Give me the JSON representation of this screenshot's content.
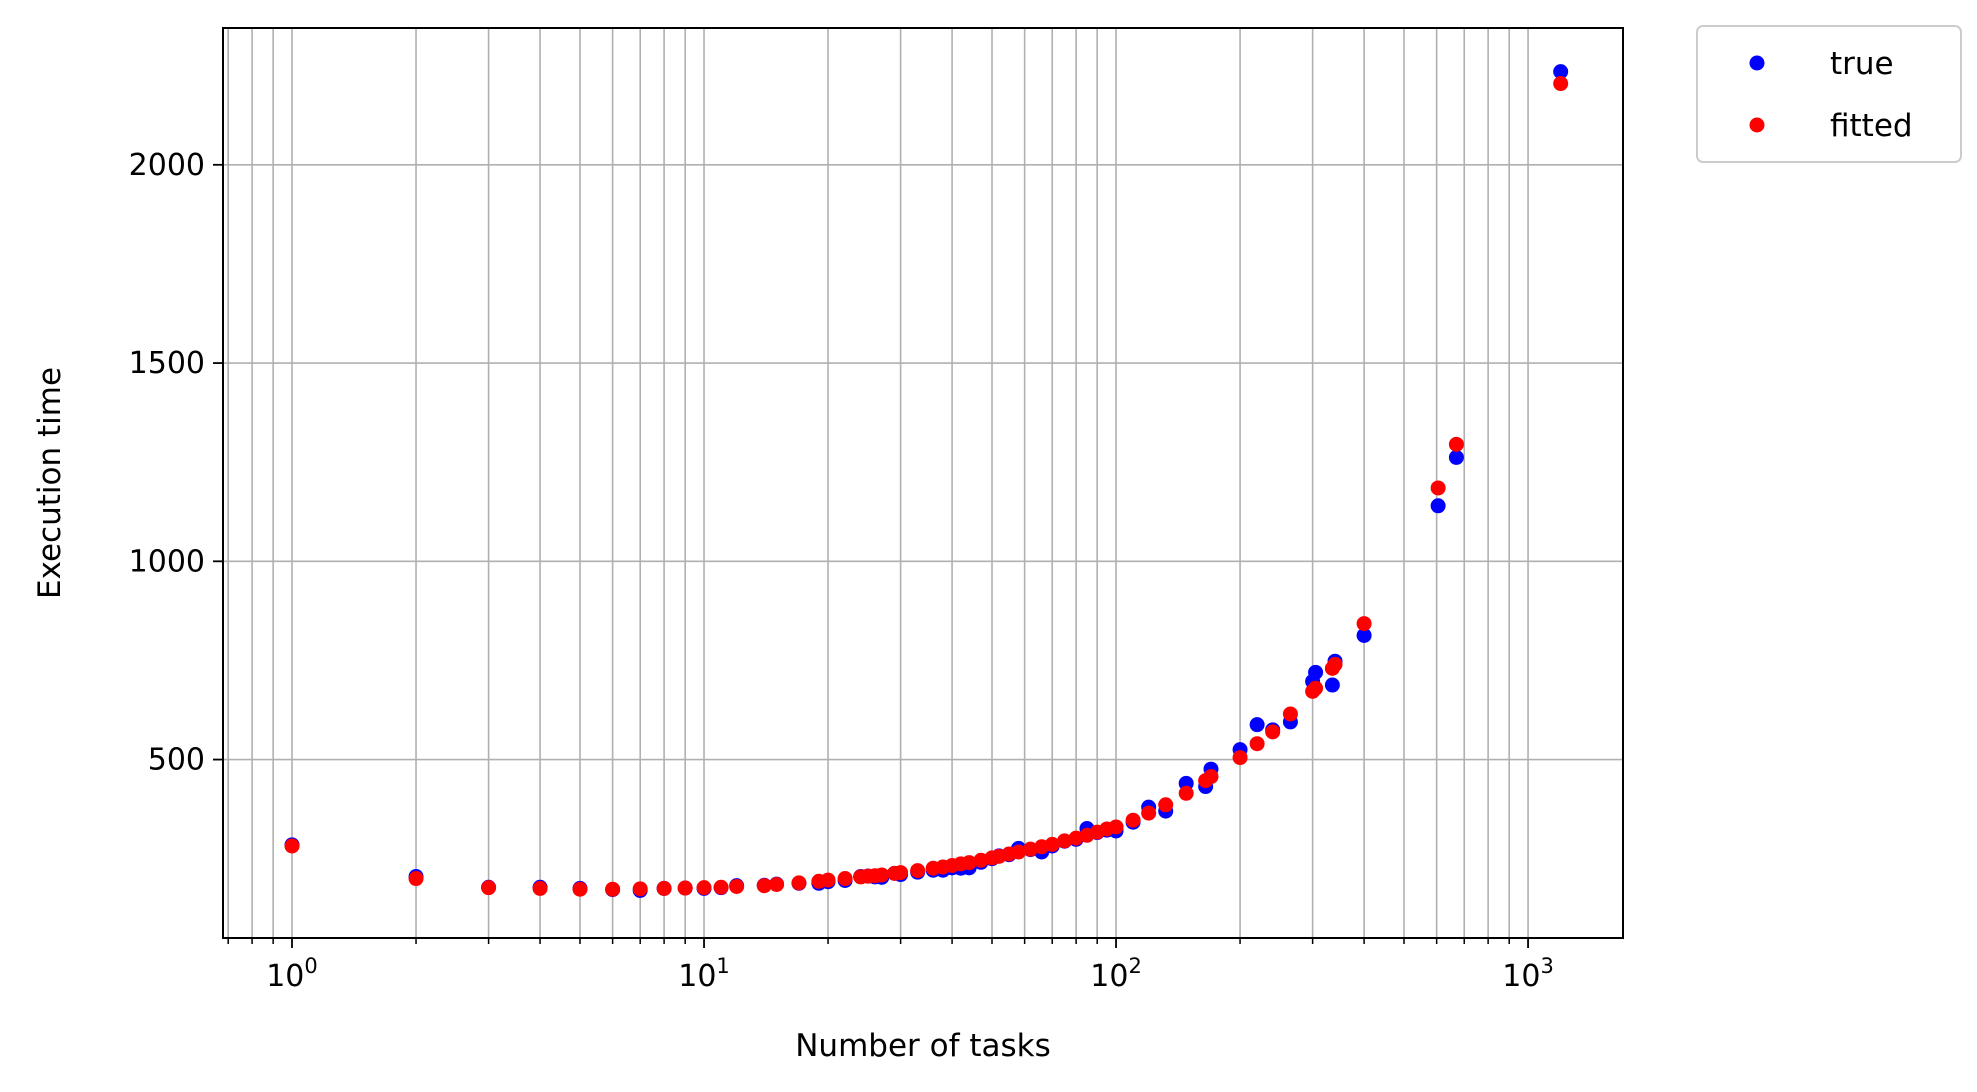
{
  "chart_data": {
    "type": "scatter",
    "title": "",
    "xlabel": "Number of tasks",
    "ylabel": "Execution time",
    "xscale": "log",
    "xlim": [
      0.68,
      1700
    ],
    "ylim": [
      50,
      2345
    ],
    "grid": true,
    "legend_placement": "outside upper right",
    "x_tick_labels": [
      {
        "value": 1,
        "base": "10",
        "exp": "0"
      },
      {
        "value": 10,
        "base": "10",
        "exp": "1"
      },
      {
        "value": 100,
        "base": "10",
        "exp": "2"
      },
      {
        "value": 1000,
        "base": "10",
        "exp": "3"
      }
    ],
    "y_ticks": [
      500,
      1000,
      1500,
      2000
    ],
    "y_tick_labels": [
      "500",
      "1000",
      "1500",
      "2000"
    ],
    "series": [
      {
        "name": "true",
        "color": "#0000ff",
        "points": [
          [
            1,
            285
          ],
          [
            2,
            205
          ],
          [
            3,
            178
          ],
          [
            4,
            178
          ],
          [
            5,
            175
          ],
          [
            6,
            172
          ],
          [
            7,
            170
          ],
          [
            8,
            175
          ],
          [
            9,
            176
          ],
          [
            10,
            175
          ],
          [
            11,
            177
          ],
          [
            12,
            182
          ],
          [
            14,
            183
          ],
          [
            15,
            186
          ],
          [
            17,
            188
          ],
          [
            19,
            188
          ],
          [
            20,
            192
          ],
          [
            22,
            195
          ],
          [
            24,
            205
          ],
          [
            25,
            206
          ],
          [
            26,
            204
          ],
          [
            27,
            203
          ],
          [
            29,
            213
          ],
          [
            30,
            210
          ],
          [
            33,
            216
          ],
          [
            36,
            221
          ],
          [
            38,
            221
          ],
          [
            40,
            227
          ],
          [
            42,
            226
          ],
          [
            44,
            227
          ],
          [
            47,
            241
          ],
          [
            50,
            250
          ],
          [
            52,
            257
          ],
          [
            55,
            260
          ],
          [
            58,
            276
          ],
          [
            62,
            273
          ],
          [
            66,
            267
          ],
          [
            70,
            282
          ],
          [
            75,
            294
          ],
          [
            80,
            299
          ],
          [
            85,
            326
          ],
          [
            90,
            316
          ],
          [
            95,
            322
          ],
          [
            100,
            320
          ],
          [
            110,
            342
          ],
          [
            120,
            380
          ],
          [
            132,
            370
          ],
          [
            148,
            440
          ],
          [
            165,
            432
          ],
          [
            170,
            476
          ],
          [
            200,
            525
          ],
          [
            220,
            588
          ],
          [
            240,
            575
          ],
          [
            265,
            595
          ],
          [
            300,
            697
          ],
          [
            305,
            720
          ],
          [
            335,
            688
          ],
          [
            340,
            748
          ],
          [
            400,
            813
          ],
          [
            605,
            1140
          ],
          [
            670,
            1262
          ],
          [
            1200,
            2235
          ]
        ]
      },
      {
        "name": "fitted",
        "color": "#ff0000",
        "points": [
          [
            1,
            282
          ],
          [
            2,
            200
          ],
          [
            3,
            177
          ],
          [
            4,
            175
          ],
          [
            5,
            173
          ],
          [
            6,
            173
          ],
          [
            7,
            174
          ],
          [
            8,
            175
          ],
          [
            9,
            176
          ],
          [
            10,
            177
          ],
          [
            11,
            178
          ],
          [
            12,
            180
          ],
          [
            14,
            182
          ],
          [
            15,
            185
          ],
          [
            17,
            189
          ],
          [
            19,
            193
          ],
          [
            20,
            196
          ],
          [
            22,
            200
          ],
          [
            24,
            204
          ],
          [
            25,
            206
          ],
          [
            26,
            207
          ],
          [
            27,
            209
          ],
          [
            29,
            213
          ],
          [
            30,
            215
          ],
          [
            33,
            220
          ],
          [
            36,
            226
          ],
          [
            38,
            229
          ],
          [
            40,
            233
          ],
          [
            42,
            237
          ],
          [
            44,
            240
          ],
          [
            47,
            246
          ],
          [
            50,
            252
          ],
          [
            52,
            256
          ],
          [
            55,
            262
          ],
          [
            58,
            267
          ],
          [
            62,
            274
          ],
          [
            66,
            280
          ],
          [
            70,
            286
          ],
          [
            75,
            295
          ],
          [
            80,
            302
          ],
          [
            85,
            309
          ],
          [
            90,
            317
          ],
          [
            95,
            325
          ],
          [
            100,
            330
          ],
          [
            110,
            347
          ],
          [
            120,
            365
          ],
          [
            132,
            386
          ],
          [
            148,
            415
          ],
          [
            165,
            447
          ],
          [
            170,
            457
          ],
          [
            200,
            505
          ],
          [
            220,
            540
          ],
          [
            240,
            570
          ],
          [
            265,
            615
          ],
          [
            300,
            672
          ],
          [
            305,
            680
          ],
          [
            335,
            730
          ],
          [
            340,
            740
          ],
          [
            400,
            843
          ],
          [
            605,
            1185
          ],
          [
            670,
            1295
          ],
          [
            1200,
            2205
          ]
        ]
      }
    ]
  }
}
